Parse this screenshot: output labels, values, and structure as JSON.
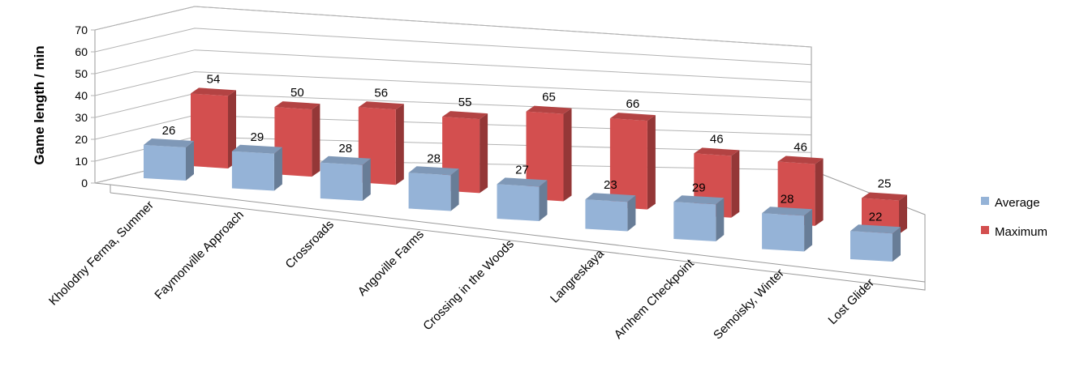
{
  "chart_data": {
    "type": "bar",
    "style": "3d-clustered-columns",
    "categories": [
      "Kholodny Ferma, Summer",
      "Faymonville Approach",
      "Crossroads",
      "Angoville Farms",
      "Crossing in the Woods",
      "Langreskaya",
      "Arnhem Checkpoint",
      "Semoisky, Winter",
      "Lost Glider"
    ],
    "series": [
      {
        "name": "Average",
        "color": "#95b3d7",
        "values": [
          26,
          29,
          28,
          28,
          27,
          23,
          29,
          28,
          22
        ]
      },
      {
        "name": "Maximum",
        "color": "#d34f4f",
        "values": [
          54,
          50,
          56,
          55,
          65,
          66,
          46,
          46,
          25
        ]
      }
    ],
    "ylabel": "Game length / min",
    "xlabel": "",
    "ylim": [
      0,
      70
    ],
    "yticks": [
      "0",
      "10",
      "20",
      "30",
      "40",
      "50",
      "60",
      "70"
    ],
    "grid": true,
    "legend": "right"
  }
}
